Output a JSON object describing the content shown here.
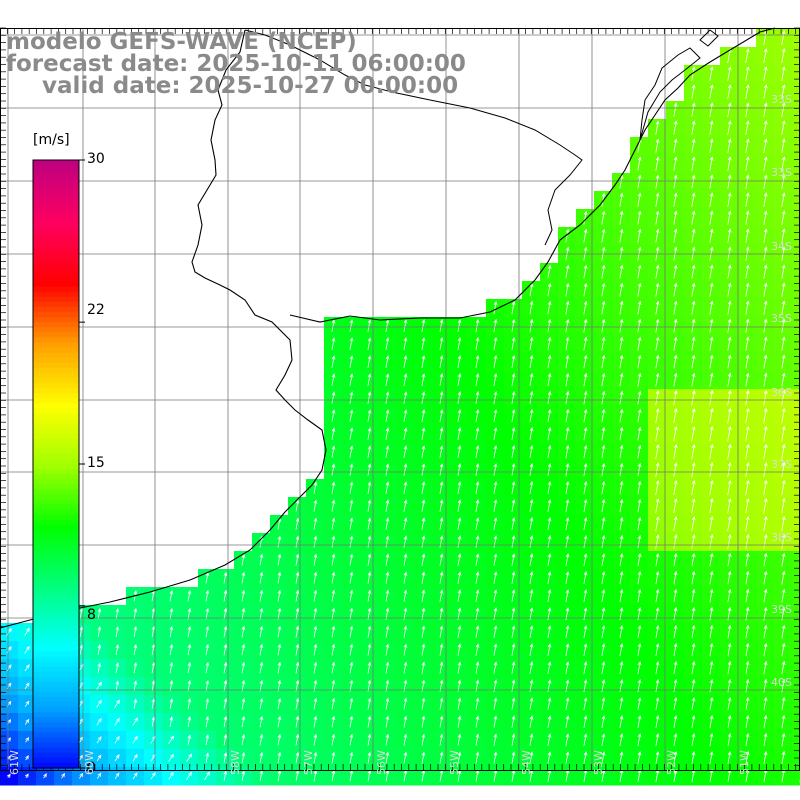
{
  "title": {
    "line1": "modelo GEFS-WAVE (NCEP)",
    "line2": "forecast date: 2025-10-11 06:00:00",
    "line3": "valid date: 2025-10-27 00:00:00"
  },
  "colorbar": {
    "unit": "[m/s]",
    "ticks": [
      "30",
      "22",
      "15",
      "8",
      "0"
    ],
    "tick_values": [
      30,
      22,
      15,
      8,
      0
    ],
    "colors": [
      "#0000ff",
      "#00a0ff",
      "#00ffff",
      "#00ff80",
      "#00ff00",
      "#a0ff00",
      "#ffff00",
      "#ffa000",
      "#ff0000",
      "#ff0060",
      "#c00080"
    ]
  },
  "lat_labels": [
    "33S",
    "34S",
    "35S",
    "36S",
    "37S",
    "38S",
    "39S",
    "40S"
  ],
  "lon_labels": [
    "61W",
    "60W",
    "59W",
    "58W",
    "57W",
    "56W",
    "55W",
    "54W",
    "53W",
    "52W",
    "51W",
    "50W"
  ],
  "grid": {
    "lon_min": -61,
    "lon_max": -50,
    "lat_min": -41,
    "lat_max": -30
  }
}
